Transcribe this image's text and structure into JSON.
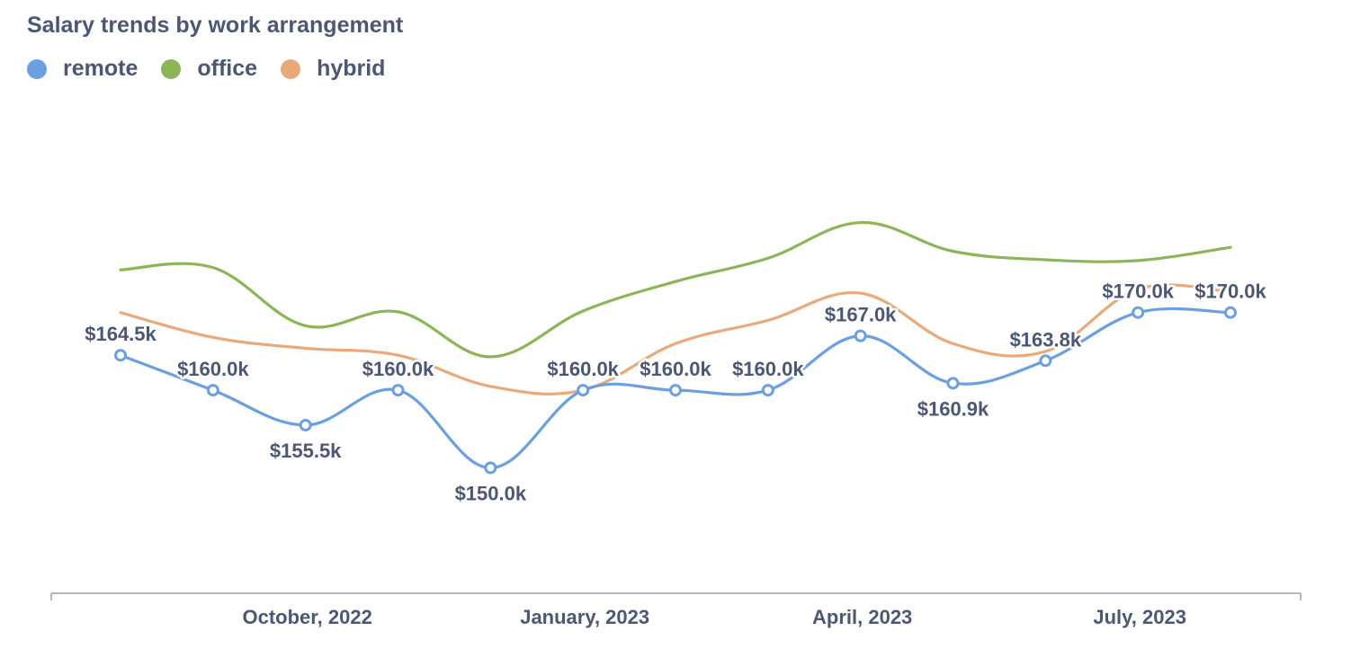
{
  "title": "Salary trends by work arrangement",
  "colors": {
    "remote": "#6b9fe0",
    "office": "#8cb55a",
    "hybrid": "#e8aa7a",
    "text": "#4c5773",
    "axis": "#9aa0ab"
  },
  "chart_data": {
    "type": "line",
    "title": "Salary trends by work arrangement",
    "xlabel": "",
    "ylabel": "",
    "legend_position": "top-left",
    "grid": false,
    "x": [
      "2022-08",
      "2022-09",
      "2022-10",
      "2022-11",
      "2022-12",
      "2023-01",
      "2023-02",
      "2023-03",
      "2023-04",
      "2023-05",
      "2023-06",
      "2023-07",
      "2023-08"
    ],
    "x_ticks": [
      "October, 2022",
      "January, 2023",
      "April, 2023",
      "July, 2023"
    ],
    "ylim": [
      135000,
      190000
    ],
    "series": [
      {
        "name": "remote",
        "color": "#6b9fe0",
        "values": [
          164500,
          160000,
          155500,
          160000,
          150000,
          160000,
          160000,
          160000,
          167000,
          160900,
          163800,
          170000,
          170000
        ],
        "labels": [
          "$164.5k",
          "$160.0k",
          "$155.5k",
          "$160.0k",
          "$150.0k",
          "$160.0k",
          "$160.0k",
          "$160.0k",
          "$167.0k",
          "$160.9k",
          "$163.8k",
          "$170.0k",
          "$170.0k"
        ],
        "markers": true
      },
      {
        "name": "office",
        "color": "#8cb55a",
        "values": [
          175500,
          175800,
          168300,
          170100,
          164300,
          170200,
          174000,
          177000,
          181600,
          177900,
          176800,
          176700,
          178400
        ],
        "markers": false
      },
      {
        "name": "hybrid",
        "color": "#e8aa7a",
        "values": [
          170000,
          166800,
          165400,
          164500,
          160500,
          160000,
          166000,
          169000,
          172500,
          166000,
          165000,
          173000,
          172700
        ],
        "markers": false
      }
    ]
  }
}
